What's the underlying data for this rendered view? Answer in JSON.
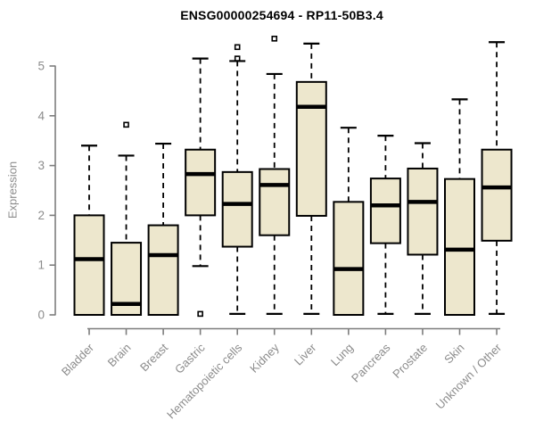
{
  "title": "ENSG00000254694 - RP11-50B3.4",
  "chart_data": {
    "type": "boxplot",
    "title": "ENSG00000254694 - RP11-50B3.4",
    "xlabel": "",
    "ylabel": "Expression",
    "ylim": [
      0,
      5
    ],
    "yticks": [
      0,
      1,
      2,
      3,
      4,
      5
    ],
    "grid": false,
    "legend": "none",
    "categories": [
      "Bladder",
      "Brain",
      "Breast",
      "Gastric",
      "Hematopoietic cells",
      "Kidney",
      "Liver",
      "Lung",
      "Pancreas",
      "Prostate",
      "Skin",
      "Unknown / Other"
    ],
    "series": [
      {
        "name": "Bladder",
        "low": 0,
        "q1": 0,
        "median": 1.12,
        "q3": 2.0,
        "high": 3.4,
        "outliers": []
      },
      {
        "name": "Brain",
        "low": 0,
        "q1": 0,
        "median": 0.22,
        "q3": 1.45,
        "high": 3.2,
        "outliers": [
          3.82
        ]
      },
      {
        "name": "Breast",
        "low": 0,
        "q1": 0,
        "median": 1.2,
        "q3": 1.8,
        "high": 3.44,
        "outliers": []
      },
      {
        "name": "Gastric",
        "low": 0.98,
        "q1": 2.0,
        "median": 2.83,
        "q3": 3.32,
        "high": 5.15,
        "outliers": [
          0.02
        ]
      },
      {
        "name": "Hematopoietic cells",
        "low": 0.02,
        "q1": 1.37,
        "median": 2.23,
        "q3": 2.87,
        "high": 5.1,
        "outliers": [
          5.15,
          5.38
        ]
      },
      {
        "name": "Kidney",
        "low": 0.02,
        "q1": 1.6,
        "median": 2.61,
        "q3": 2.93,
        "high": 4.84,
        "outliers": [
          5.55
        ]
      },
      {
        "name": "Liver",
        "low": 0.02,
        "q1": 1.99,
        "median": 4.18,
        "q3": 4.68,
        "high": 5.45,
        "outliers": []
      },
      {
        "name": "Lung",
        "low": 0,
        "q1": 0,
        "median": 0.92,
        "q3": 2.27,
        "high": 3.76,
        "outliers": []
      },
      {
        "name": "Pancreas",
        "low": 0.02,
        "q1": 1.44,
        "median": 2.2,
        "q3": 2.74,
        "high": 3.6,
        "outliers": []
      },
      {
        "name": "Prostate",
        "low": 0.02,
        "q1": 1.21,
        "median": 2.27,
        "q3": 2.94,
        "high": 3.45,
        "outliers": []
      },
      {
        "name": "Skin",
        "low": 0,
        "q1": 0,
        "median": 1.31,
        "q3": 2.73,
        "high": 4.33,
        "outliers": []
      },
      {
        "name": "Unknown / Other",
        "low": 0.02,
        "q1": 1.49,
        "median": 2.56,
        "q3": 3.32,
        "high": 5.48,
        "outliers": []
      }
    ],
    "colors": {
      "box_fill": "#EDE7CD",
      "box_border": "#000000",
      "median": "#000000",
      "whisker": "#000000",
      "axis": "#7d7d7d",
      "tick_label": "#8c8c8c",
      "title": "#000000",
      "background": "#ffffff"
    }
  }
}
